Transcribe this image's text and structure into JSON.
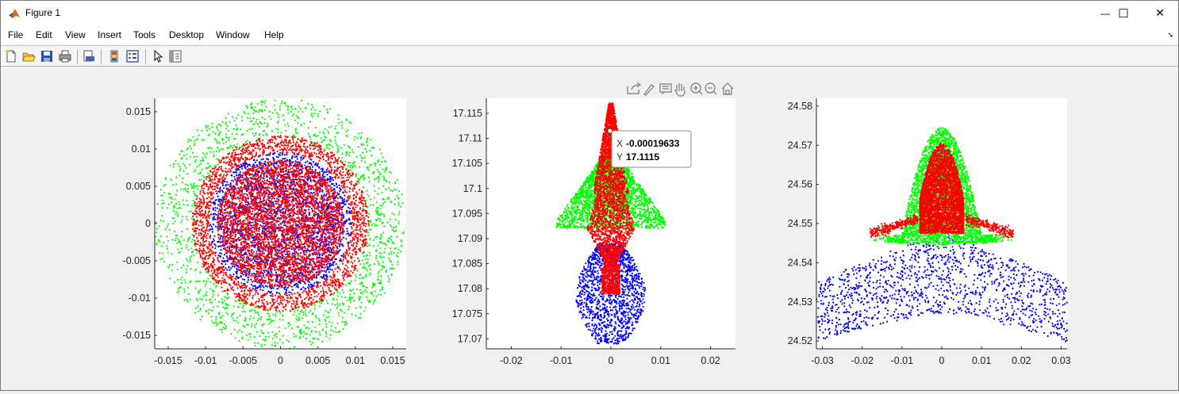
{
  "window": {
    "title": "Figure 1",
    "minimize_glyph": "—",
    "maximize_glyph": "☐",
    "close_glyph": "✕"
  },
  "menu": [
    "File",
    "Edit",
    "View",
    "Insert",
    "Tools",
    "Desktop",
    "Window",
    "Help"
  ],
  "toolbar_icons": [
    "new-figure-icon",
    "open-file-icon",
    "save-icon",
    "print-icon",
    "print-preview-icon",
    "colorbar-icon",
    "legend-icon",
    "edit-plot-icon",
    "property-inspector-icon"
  ],
  "axes_toolbar_icons": [
    "export-icon",
    "brush-icon",
    "data-tip-icon",
    "pan-icon",
    "zoom-in-icon",
    "zoom-out-icon",
    "home-icon"
  ],
  "colors": {
    "green": "#00ff00",
    "blue": "#0000ff",
    "red": "#ff0000"
  },
  "chart_data": [
    {
      "type": "scatter",
      "title": "",
      "xlabel": "",
      "ylabel": "",
      "xlim": [
        -0.0168,
        0.0168
      ],
      "ylim": [
        -0.0168,
        0.0168
      ],
      "xticks": [
        "-0.015",
        "-0.01",
        "-0.005",
        "0",
        "0.005",
        "0.01",
        "0.015"
      ],
      "yticks": [
        "0.015",
        "0.01",
        "0.005",
        "0",
        "-0.005",
        "-0.01",
        "-0.015"
      ],
      "series": [
        {
          "color": "green",
          "shape": "disk",
          "r_outer": 0.0168,
          "r_inner": 0.0,
          "n": 1500
        },
        {
          "color": "blue",
          "shape": "disk",
          "r_outer": 0.0095,
          "r_inner": 0.0,
          "n": 2500
        },
        {
          "color": "red",
          "shape": "ring",
          "r_outer": 0.0118,
          "r_inner": 0.0095,
          "n": 1800
        },
        {
          "color": "red",
          "shape": "disk",
          "r_outer": 0.0085,
          "r_inner": 0.0,
          "n": 3500
        }
      ]
    },
    {
      "type": "scatter",
      "title": "",
      "xlabel": "",
      "ylabel": "",
      "xlim": [
        -0.025,
        0.025
      ],
      "ylim": [
        17.068,
        17.118
      ],
      "xticks": [
        "-0.02",
        "-0.01",
        "0",
        "0.01",
        "0.02"
      ],
      "yticks": [
        "17.115",
        "17.11",
        "17.105",
        "17.1",
        "17.095",
        "17.09",
        "17.085",
        "17.08",
        "17.075",
        "17.07"
      ],
      "datatip": {
        "x_label": "X",
        "x_value": "-0.00019633",
        "y_label": "Y",
        "y_value": "17.1115",
        "x": -0.00019633,
        "y": 17.1115
      }
    },
    {
      "type": "scatter",
      "title": "",
      "xlabel": "",
      "ylabel": "",
      "xlim": [
        -0.0315,
        0.0315
      ],
      "ylim": [
        24.518,
        24.582
      ],
      "xticks": [
        "-0.03",
        "-0.02",
        "-0.01",
        "0",
        "0.01",
        "0.02",
        "0.03"
      ],
      "yticks": [
        "24.58",
        "24.57",
        "24.56",
        "24.55",
        "24.54",
        "24.53",
        "24.52"
      ]
    }
  ]
}
